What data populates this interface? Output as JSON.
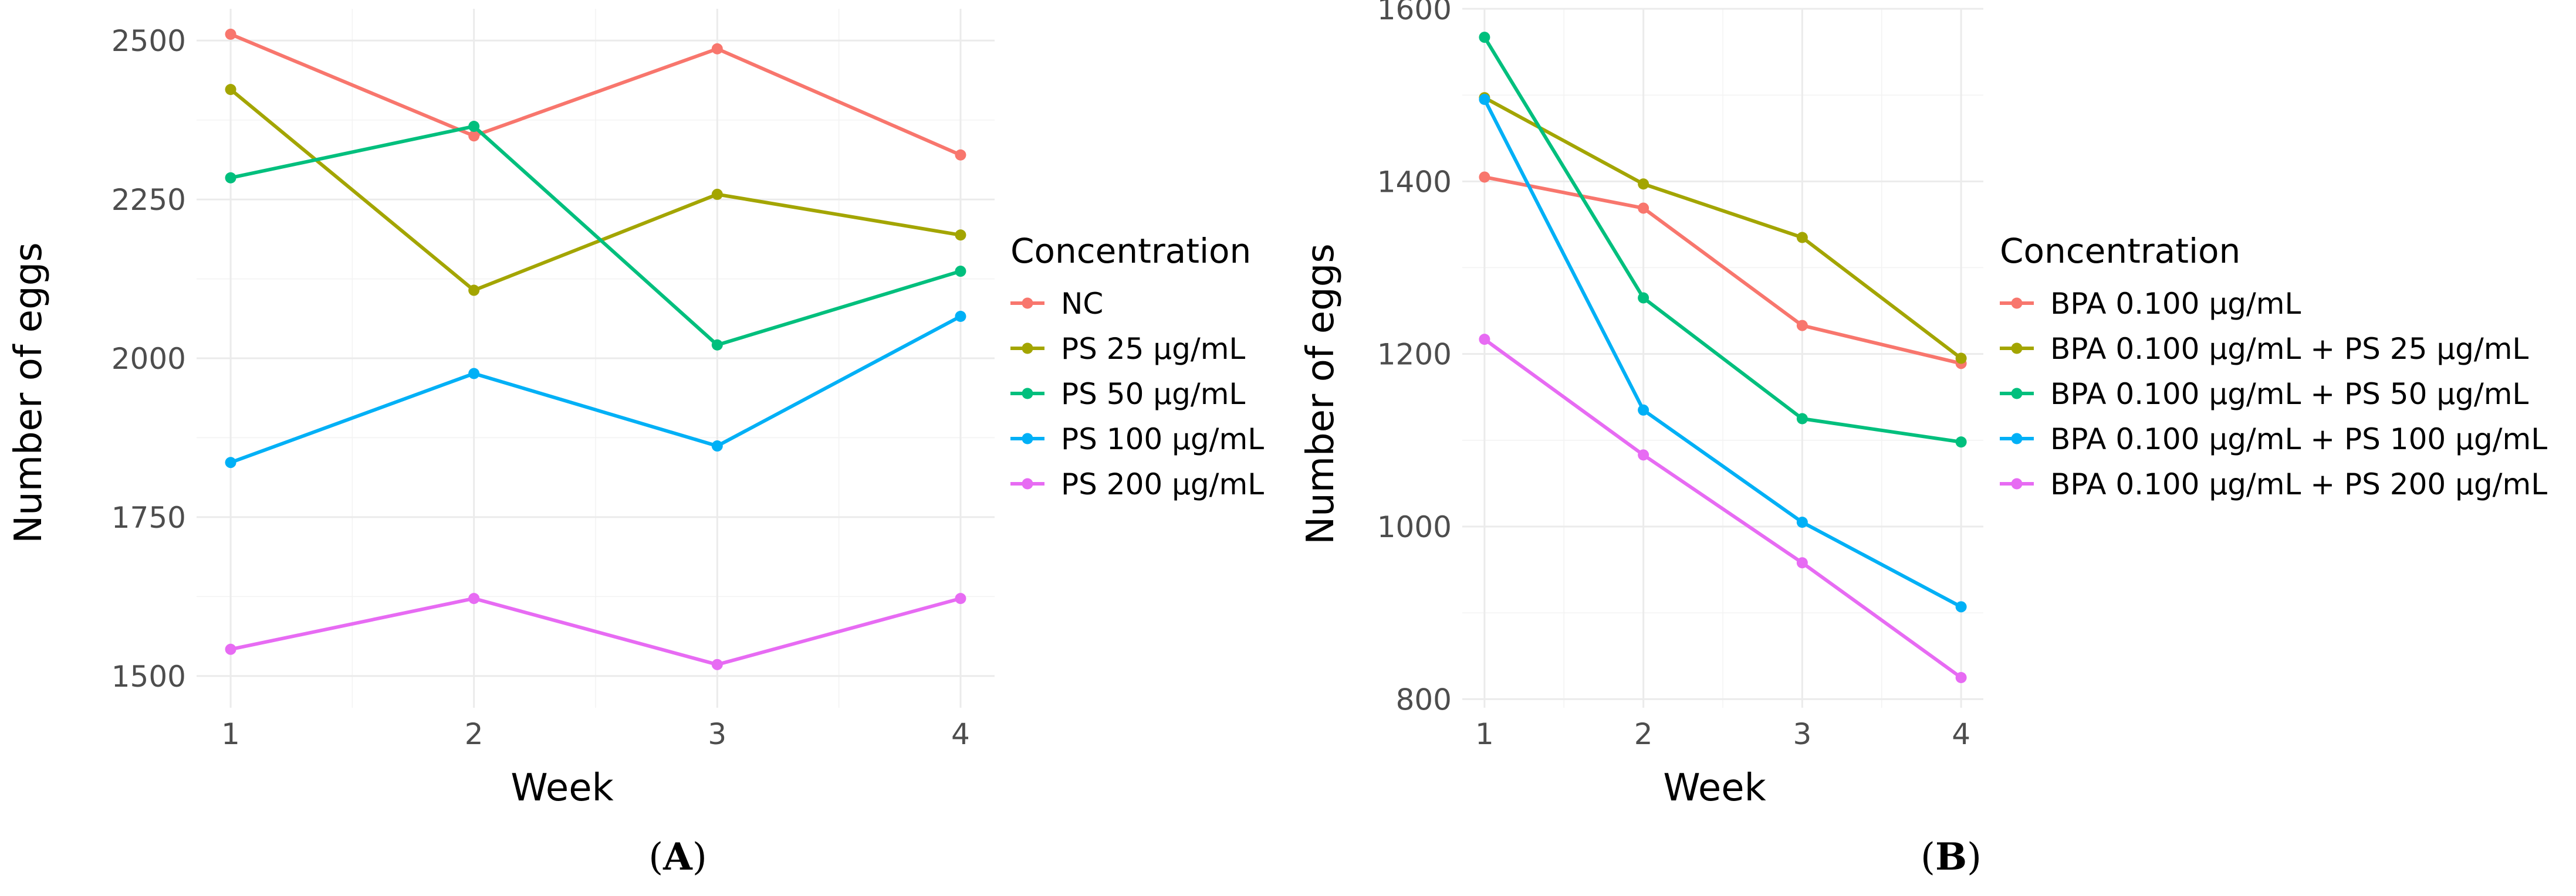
{
  "chart_data": [
    {
      "id": "A",
      "panel_label": "A",
      "type": "line",
      "x": [
        1,
        2,
        3,
        4
      ],
      "x_ticks": [
        1,
        2,
        3,
        4
      ],
      "xlim": [
        0.86,
        4.14
      ],
      "ylim": [
        1450,
        2550
      ],
      "y_ticks": [
        1500,
        1750,
        2000,
        2250,
        2500
      ],
      "y_minor": [
        1625,
        1875,
        2125,
        2375
      ],
      "xlabel": "Week",
      "ylabel": "Number of eggs",
      "legend_title": "Concentration",
      "legend_position": "right",
      "grid": true,
      "series": [
        {
          "name": "NC",
          "color": "#F8766D",
          "values": [
            2510,
            2350,
            2487,
            2320
          ]
        },
        {
          "name": "PS 25 µg/mL",
          "color": "#A3A500",
          "values": [
            2423,
            2107,
            2258,
            2194
          ]
        },
        {
          "name": "PS 50 µg/mL",
          "color": "#00BF7D",
          "values": [
            2284,
            2365,
            2021,
            2137
          ]
        },
        {
          "name": "PS 100 µg/mL",
          "color": "#00B0F6",
          "values": [
            1836,
            1976,
            1862,
            2066
          ]
        },
        {
          "name": "PS 200 µg/mL",
          "color": "#E76BF3",
          "values": [
            1542,
            1622,
            1518,
            1622
          ]
        }
      ]
    },
    {
      "id": "B",
      "panel_label": "B",
      "type": "line",
      "x": [
        1,
        2,
        3,
        4
      ],
      "x_ticks": [
        1,
        2,
        3,
        4
      ],
      "xlim": [
        0.86,
        4.14
      ],
      "ylim": [
        790,
        1600
      ],
      "y_ticks": [
        800,
        1000,
        1200,
        1400,
        1600
      ],
      "y_minor": [
        900,
        1100,
        1300,
        1500
      ],
      "xlabel": "Week",
      "ylabel": "Number of eggs",
      "legend_title": "Concentration",
      "legend_position": "right",
      "grid": true,
      "series": [
        {
          "name": "BPA 0.100 µg/mL",
          "color": "#F8766D",
          "values": [
            1405,
            1369,
            1233,
            1189
          ]
        },
        {
          "name": "BPA 0.100 µg/mL + PS 25 µg/mL",
          "color": "#A3A500",
          "values": [
            1497,
            1397,
            1335,
            1195
          ]
        },
        {
          "name": "BPA 0.100 µg/mL + PS 50 µg/mL",
          "color": "#00BF7D",
          "values": [
            1567,
            1265,
            1125,
            1098
          ]
        },
        {
          "name": "BPA 0.100 µg/mL + PS 100 µg/mL",
          "color": "#00B0F6",
          "values": [
            1495,
            1135,
            1005,
            907
          ]
        },
        {
          "name": "BPA 0.100 µg/mL + PS 200 µg/mL",
          "color": "#E76BF3",
          "values": [
            1217,
            1083,
            958,
            825
          ]
        }
      ]
    }
  ]
}
